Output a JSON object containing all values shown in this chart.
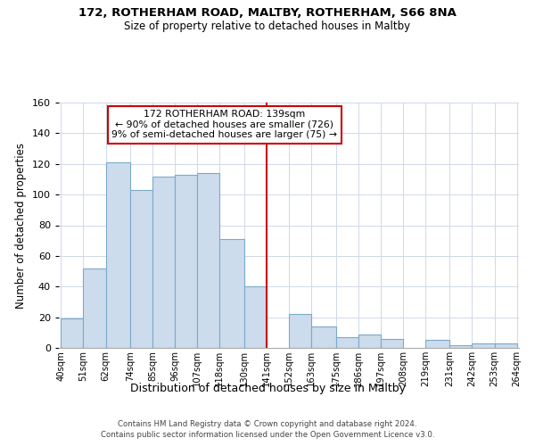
{
  "title1": "172, ROTHERHAM ROAD, MALTBY, ROTHERHAM, S66 8NA",
  "title2": "Size of property relative to detached houses in Maltby",
  "xlabel": "Distribution of detached houses by size in Maltby",
  "ylabel": "Number of detached properties",
  "bar_edges": [
    40,
    51,
    62,
    74,
    85,
    96,
    107,
    118,
    130,
    141,
    152,
    163,
    175,
    186,
    197,
    208,
    219,
    231,
    242,
    253,
    264
  ],
  "bar_heights": [
    19,
    52,
    121,
    103,
    112,
    113,
    114,
    71,
    40,
    0,
    22,
    14,
    7,
    9,
    6,
    0,
    5,
    2,
    3,
    3
  ],
  "bar_color": "#ccdcec",
  "bar_edgecolor": "#7aaaca",
  "vline_x": 141,
  "vline_color": "#cc0000",
  "annotation_title": "172 ROTHERHAM ROAD: 139sqm",
  "annotation_line1": "← 90% of detached houses are smaller (726)",
  "annotation_line2": "9% of semi-detached houses are larger (75) →",
  "tick_labels": [
    "40sqm",
    "51sqm",
    "62sqm",
    "74sqm",
    "85sqm",
    "96sqm",
    "107sqm",
    "118sqm",
    "130sqm",
    "141sqm",
    "152sqm",
    "163sqm",
    "175sqm",
    "186sqm",
    "197sqm",
    "208sqm",
    "219sqm",
    "231sqm",
    "242sqm",
    "253sqm",
    "264sqm"
  ],
  "ylim": [
    0,
    160
  ],
  "yticks": [
    0,
    20,
    40,
    60,
    80,
    100,
    120,
    140,
    160
  ],
  "footer1": "Contains HM Land Registry data © Crown copyright and database right 2024.",
  "footer2": "Contains public sector information licensed under the Open Government Licence v3.0."
}
